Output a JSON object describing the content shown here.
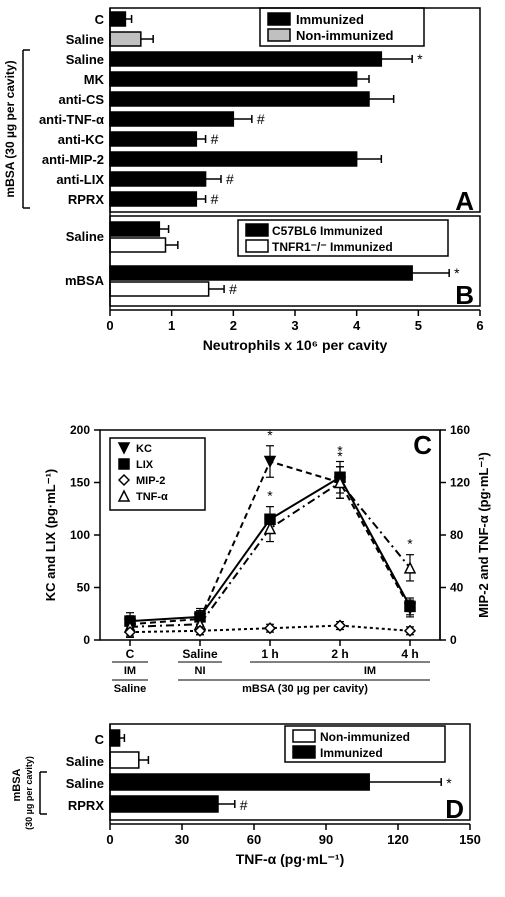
{
  "colors": {
    "black": "#000000",
    "gray": "#c0c0c0",
    "white": "#ffffff"
  },
  "fonts": {
    "axis_label": 14,
    "tick": 13,
    "legend": 13,
    "panel": 26,
    "ylabel_small": 12
  },
  "panelA": {
    "panel_label": "A",
    "x_axis_label": "Neutrophils x 10⁶ per cavity",
    "x_ticks": [
      0,
      1,
      2,
      3,
      4,
      5,
      6
    ],
    "legend": [
      {
        "label": "Immunized",
        "fill": "#000000"
      },
      {
        "label": "Non-immunized",
        "fill": "#c0c0c0"
      }
    ],
    "y_group_label": "mBSA (30 µg per cavity)",
    "bars": [
      {
        "label": "C",
        "value": 0.25,
        "err": 0.1,
        "fill": "#000000",
        "mark": ""
      },
      {
        "label": "Saline",
        "value": 0.5,
        "err": 0.2,
        "fill": "#c0c0c0",
        "mark": ""
      },
      {
        "label": "Saline",
        "value": 4.4,
        "err": 0.5,
        "fill": "#000000",
        "mark": "*"
      },
      {
        "label": "MK",
        "value": 4.0,
        "err": 0.2,
        "fill": "#000000",
        "mark": ""
      },
      {
        "label": "anti-CS",
        "value": 4.2,
        "err": 0.4,
        "fill": "#000000",
        "mark": ""
      },
      {
        "label": "anti-TNF-α",
        "value": 2.0,
        "err": 0.3,
        "fill": "#000000",
        "mark": "#"
      },
      {
        "label": "anti-KC",
        "value": 1.4,
        "err": 0.15,
        "fill": "#000000",
        "mark": "#"
      },
      {
        "label": "anti-MIP-2",
        "value": 4.0,
        "err": 0.4,
        "fill": "#000000",
        "mark": ""
      },
      {
        "label": "anti-LIX",
        "value": 1.55,
        "err": 0.25,
        "fill": "#000000",
        "mark": "#"
      },
      {
        "label": "RPRX",
        "value": 1.4,
        "err": 0.15,
        "fill": "#000000",
        "mark": "#"
      }
    ]
  },
  "panelB": {
    "panel_label": "B",
    "legend": [
      {
        "label": "C57BL6 Immunized",
        "fill": "#000000"
      },
      {
        "label": "TNFR1⁻/⁻ Immunized",
        "fill": "#ffffff"
      }
    ],
    "groups": [
      {
        "label": "Saline",
        "bars": [
          {
            "value": 0.8,
            "err": 0.15,
            "fill": "#000000",
            "mark": ""
          },
          {
            "value": 0.9,
            "err": 0.2,
            "fill": "#ffffff",
            "mark": ""
          }
        ]
      },
      {
        "label": "mBSA",
        "bars": [
          {
            "value": 4.9,
            "err": 0.6,
            "fill": "#000000",
            "mark": "*"
          },
          {
            "value": 1.6,
            "err": 0.25,
            "fill": "#ffffff",
            "mark": "#"
          }
        ]
      }
    ]
  },
  "panelC": {
    "panel_label": "C",
    "y_left_label": "KC and LIX (pg·mL⁻¹)",
    "y_right_label": "MIP-2 and TNF-α (pg·mL⁻¹)",
    "y_left_ticks": [
      0,
      50,
      100,
      150,
      200
    ],
    "y_right_ticks": [
      0,
      40,
      80,
      120,
      160
    ],
    "x_cats": [
      "C",
      "Saline",
      "1 h",
      "2 h",
      "4 h"
    ],
    "x_sub_upper": [
      "IM",
      "NI",
      "",
      "IM",
      ""
    ],
    "x_sub_lower": [
      "Saline",
      "",
      "",
      "mBSA (30 µg per cavity)",
      ""
    ],
    "legend": [
      {
        "label": "KC",
        "marker": "triangle-down",
        "fill": "#000000",
        "dash": "6,4"
      },
      {
        "label": "LIX",
        "marker": "square",
        "fill": "#000000",
        "dash": ""
      },
      {
        "label": "MIP-2",
        "marker": "diamond",
        "fill": "#ffffff",
        "dash": "3,3"
      },
      {
        "label": "TNF-α",
        "marker": "triangle-up",
        "fill": "#ffffff",
        "dash": "8,4,2,4"
      }
    ],
    "series": {
      "KC": {
        "axis": "left",
        "vals": [
          15,
          20,
          170,
          150,
          30
        ],
        "err": [
          8,
          8,
          15,
          15,
          8
        ],
        "marks": [
          "",
          "",
          "*",
          "*",
          ""
        ]
      },
      "LIX": {
        "axis": "left",
        "vals": [
          18,
          22,
          115,
          155,
          32
        ],
        "err": [
          8,
          8,
          12,
          15,
          8
        ],
        "marks": [
          "",
          "",
          "*",
          "*",
          ""
        ]
      },
      "MIP-2": {
        "axis": "right",
        "vals": [
          6,
          7,
          9,
          11,
          7
        ],
        "err": [
          3,
          3,
          3,
          3,
          3
        ],
        "marks": [
          "",
          "",
          "",
          "",
          ""
        ]
      },
      "TNF-a": {
        "axis": "right",
        "vals": [
          10,
          12,
          85,
          120,
          55
        ],
        "err": [
          8,
          8,
          10,
          12,
          10
        ],
        "marks": [
          "",
          "",
          "",
          "",
          "*"
        ]
      }
    }
  },
  "panelD": {
    "panel_label": "D",
    "x_axis_label": "TNF-α (pg·mL⁻¹)",
    "x_ticks": [
      0,
      30,
      60,
      90,
      120,
      150
    ],
    "y_group_label": "mBSA\n(30 µg per cavity)",
    "legend": [
      {
        "label": "Non-immunized",
        "fill": "#ffffff"
      },
      {
        "label": "Immunized",
        "fill": "#000000"
      }
    ],
    "bars": [
      {
        "label": "C",
        "value": 4,
        "err": 2,
        "fill": "#000000",
        "mark": ""
      },
      {
        "label": "Saline",
        "value": 12,
        "err": 4,
        "fill": "#ffffff",
        "mark": ""
      },
      {
        "label": "Saline",
        "value": 108,
        "err": 30,
        "fill": "#000000",
        "mark": "*"
      },
      {
        "label": "RPRX",
        "value": 45,
        "err": 7,
        "fill": "#000000",
        "mark": "#"
      }
    ]
  }
}
